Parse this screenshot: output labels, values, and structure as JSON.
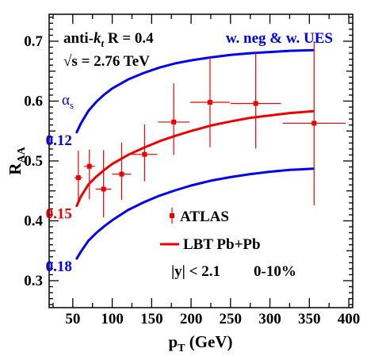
{
  "chart_data": {
    "type": "line",
    "xlabel": "p",
    "xlabel_sub": "T",
    "xlabel_unit": "(GeV)",
    "ylabel": "R",
    "ylabel_sub": "AA",
    "xlim": [
      20,
      405
    ],
    "ylim": [
      0.255,
      0.745
    ],
    "x_ticks": [
      50,
      100,
      150,
      200,
      250,
      300,
      350,
      400
    ],
    "x_tick_labels": [
      "50",
      "100",
      "150",
      "200",
      "250",
      "300",
      "350",
      "400"
    ],
    "y_ticks": [
      0.3,
      0.4,
      0.5,
      0.6,
      0.7
    ],
    "y_tick_labels": [
      "0.3",
      "0.4",
      "0.5",
      "0.6",
      "0.7"
    ],
    "annotations": {
      "algo_prefix": "anti-",
      "algo_k": "k",
      "algo_sub": "t",
      "algo_rest": " R = 0.4",
      "energy_prefix": "√s = 2.76 TeV",
      "model_label": "w. neg & w. UES",
      "alpha_label": "α",
      "alpha_sub": "s",
      "rapidity_label": "|y| < 2.1",
      "centrality_label": "0-10%"
    },
    "series": [
      {
        "name": "0.12",
        "color": "#0000ee",
        "x": [
          55,
          60,
          70,
          80,
          90,
          100,
          120,
          140,
          160,
          180,
          200,
          225,
          250,
          275,
          300,
          325,
          355
        ],
        "y": [
          0.548,
          0.562,
          0.584,
          0.599,
          0.611,
          0.621,
          0.636,
          0.647,
          0.656,
          0.663,
          0.668,
          0.673,
          0.677,
          0.68,
          0.682,
          0.684,
          0.685
        ]
      },
      {
        "name": "0.15",
        "color": "#ee0000",
        "x": [
          55,
          60,
          70,
          80,
          90,
          100,
          120,
          140,
          160,
          180,
          200,
          225,
          250,
          275,
          300,
          325,
          355
        ],
        "y": [
          0.425,
          0.44,
          0.461,
          0.474,
          0.485,
          0.495,
          0.51,
          0.522,
          0.533,
          0.542,
          0.55,
          0.559,
          0.566,
          0.572,
          0.576,
          0.58,
          0.583
        ]
      },
      {
        "name": "0.18",
        "color": "#0000ee",
        "x": [
          55,
          60,
          70,
          80,
          90,
          100,
          120,
          140,
          160,
          180,
          200,
          225,
          250,
          275,
          300,
          325,
          355
        ],
        "y": [
          0.337,
          0.348,
          0.367,
          0.38,
          0.391,
          0.401,
          0.418,
          0.431,
          0.442,
          0.451,
          0.459,
          0.467,
          0.473,
          0.478,
          0.482,
          0.485,
          0.487
        ]
      }
    ],
    "data_points": {
      "name": "ATLAS",
      "color": "#ee0000",
      "points": [
        {
          "x": 57,
          "y": 0.472,
          "xerr": 5,
          "yerr_lo": 0.045,
          "yerr_hi": 0.045
        },
        {
          "x": 71,
          "y": 0.491,
          "xerr": 7,
          "yerr_lo": 0.055,
          "yerr_hi": 0.028
        },
        {
          "x": 89,
          "y": 0.453,
          "xerr": 10,
          "yerr_lo": 0.047,
          "yerr_hi": 0.065
        },
        {
          "x": 112,
          "y": 0.478,
          "xerr": 12,
          "yerr_lo": 0.043,
          "yerr_hi": 0.053
        },
        {
          "x": 141,
          "y": 0.511,
          "xerr": 16,
          "yerr_lo": 0.045,
          "yerr_hi": 0.05
        },
        {
          "x": 178,
          "y": 0.565,
          "xerr": 20,
          "yerr_lo": 0.055,
          "yerr_hi": 0.065
        },
        {
          "x": 224,
          "y": 0.598,
          "xerr": 25,
          "yerr_lo": 0.075,
          "yerr_hi": 0.075
        },
        {
          "x": 282,
          "y": 0.596,
          "xerr": 32,
          "yerr_lo": 0.075,
          "yerr_hi": 0.085
        },
        {
          "x": 356,
          "y": 0.563,
          "xerr": 40,
          "yerr_lo": 0.137,
          "yerr_hi": 0.137
        }
      ]
    },
    "legend": {
      "placement": "lower-right",
      "entries": [
        {
          "label": "ATLAS",
          "marker": "square-errorbar",
          "color": "#ee0000"
        },
        {
          "label": "LBT Pb+Pb",
          "marker": "line",
          "color": "#ee0000"
        }
      ]
    }
  }
}
